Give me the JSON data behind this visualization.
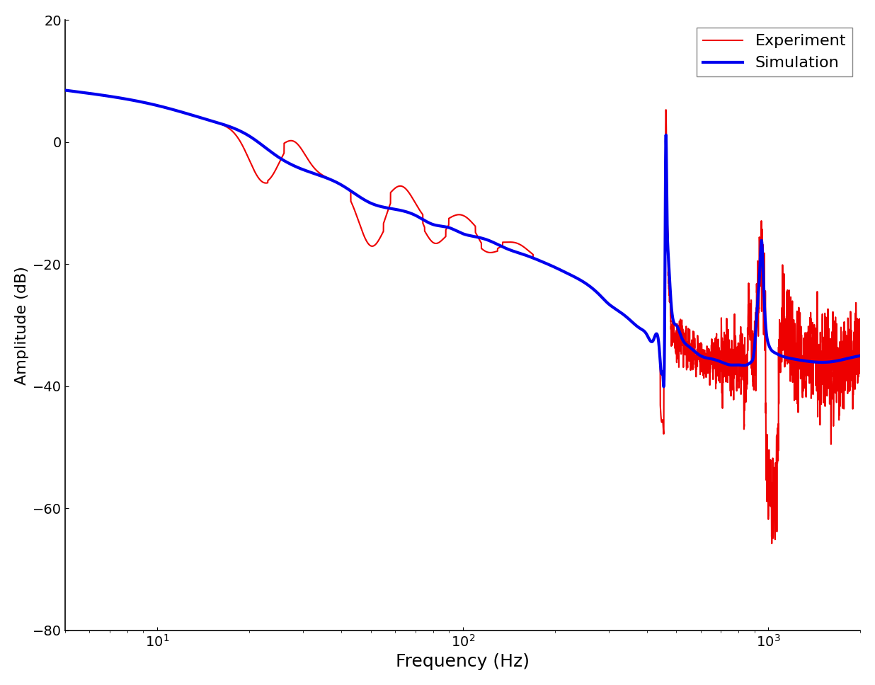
{
  "title": "",
  "xlabel": "Frequency (Hz)",
  "ylabel": "Amplitude (dB)",
  "xlim": [
    5,
    2000
  ],
  "ylim": [
    -80,
    20
  ],
  "yticks": [
    20,
    0,
    -20,
    -40,
    -60,
    -80
  ],
  "sim_color": "#0000EE",
  "exp_color": "#EE0000",
  "sim_linewidth": 3.0,
  "exp_linewidth": 1.5,
  "legend_labels": [
    "Simulation",
    "Experiment"
  ],
  "background_color": "#ffffff",
  "xlabel_fontsize": 18,
  "ylabel_fontsize": 16,
  "tick_fontsize": 14,
  "legend_fontsize": 16
}
